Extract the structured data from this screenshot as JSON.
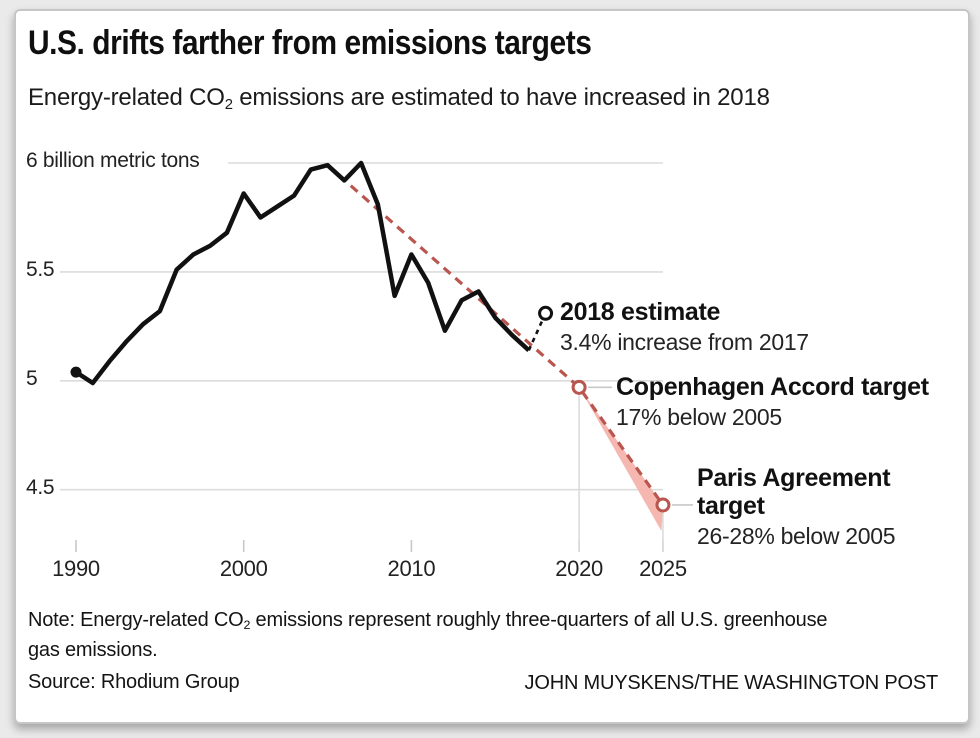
{
  "header": {
    "title": "U.S. drifts farther from emissions targets",
    "subtitle_pre": "Energy-related CO",
    "subtitle_sub": "2",
    "subtitle_post": " emissions are estimated to have increased in 2018"
  },
  "chart_data": {
    "type": "line",
    "title": "U.S. drifts farther from emissions targets",
    "ylabel": "billion metric tons",
    "xlim": [
      1990,
      2025
    ],
    "ylim": [
      4.2,
      6.05
    ],
    "grid": "horizontal",
    "x": [
      1990,
      1991,
      1992,
      1993,
      1994,
      1995,
      1996,
      1997,
      1998,
      1999,
      2000,
      2001,
      2002,
      2003,
      2004,
      2005,
      2006,
      2007,
      2008,
      2009,
      2010,
      2011,
      2012,
      2013,
      2014,
      2015,
      2016,
      2017
    ],
    "series": [
      {
        "name": "Energy-related CO2 emissions (billion metric tons)",
        "values": [
          5.04,
          4.99,
          5.09,
          5.18,
          5.26,
          5.32,
          5.51,
          5.58,
          5.62,
          5.68,
          5.86,
          5.75,
          5.8,
          5.85,
          5.97,
          5.99,
          5.92,
          6.0,
          5.81,
          5.39,
          5.58,
          5.45,
          5.23,
          5.37,
          5.41,
          5.29,
          5.21,
          5.14
        ]
      }
    ],
    "estimate": {
      "year": 2018,
      "value": 5.31,
      "label": "2018 estimate",
      "sublabel": "3.4% increase from 2017"
    },
    "projection_start": {
      "year": 2005,
      "value": 5.99
    },
    "targets": [
      {
        "name": "Copenhagen Accord target",
        "year": 2020,
        "value": 4.97,
        "sublabel": "17% below 2005"
      },
      {
        "name": "Paris Agreement target",
        "year": 2025,
        "value_upper": 4.43,
        "value_lower": 4.31,
        "sublabel": "26-28% below 2005"
      }
    ],
    "x_ticks": [
      1990,
      2000,
      2010,
      2020,
      2025
    ],
    "y_ticks": [
      {
        "value": 6,
        "label": "6 billion metric tons"
      },
      {
        "value": 5.5,
        "label": "5.5"
      },
      {
        "value": 5,
        "label": "5"
      },
      {
        "value": 4.5,
        "label": "4.5"
      }
    ],
    "colors": {
      "actual": "#111111",
      "projection": "#b9564f",
      "target_range_fill": "#f5b7b0",
      "gridline": "#dcdcdc",
      "tick": "#c8c8c8"
    }
  },
  "annotations": {
    "estimate_label": "2018 estimate",
    "estimate_sub": "3.4% increase from 2017",
    "copenhagen_label": "Copenhagen Accord target",
    "copenhagen_sub": "17% below 2005",
    "paris_label": "Paris Agreement target",
    "paris_sub": "26-28% below 2005"
  },
  "footer": {
    "note_pre": "Note: Energy-related CO",
    "note_sub": "2",
    "note_post": " emissions represent roughly three-quarters of all U.S. greenhouse",
    "note_line2": "gas emissions.",
    "source": "Source: Rhodium Group",
    "credit": "JOHN MUYSKENS/THE WASHINGTON POST"
  }
}
